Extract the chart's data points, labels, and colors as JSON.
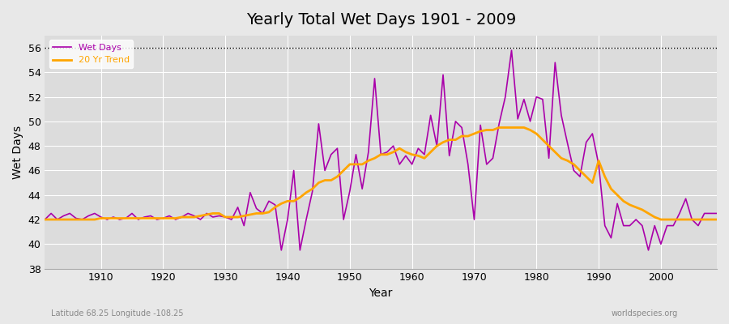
{
  "title": "Yearly Total Wet Days 1901 - 2009",
  "xlabel": "Year",
  "ylabel": "Wet Days",
  "subtitle": "Latitude 68.25 Longitude -108.25",
  "watermark": "worldspecies.org",
  "bg_color": "#e8e8e8",
  "plot_bg_color": "#dcdcdc",
  "wet_days_color": "#aa00aa",
  "trend_color": "#ffa500",
  "ylim": [
    38,
    57
  ],
  "yticks": [
    38,
    40,
    42,
    44,
    46,
    48,
    50,
    52,
    54,
    56
  ],
  "xlim": [
    1901,
    2009
  ],
  "xticks": [
    1910,
    1920,
    1930,
    1940,
    1950,
    1960,
    1970,
    1980,
    1990,
    2000
  ],
  "years": [
    1901,
    1902,
    1903,
    1904,
    1905,
    1906,
    1907,
    1908,
    1909,
    1910,
    1911,
    1912,
    1913,
    1914,
    1915,
    1916,
    1917,
    1918,
    1919,
    1920,
    1921,
    1922,
    1923,
    1924,
    1925,
    1926,
    1927,
    1928,
    1929,
    1930,
    1931,
    1932,
    1933,
    1934,
    1935,
    1936,
    1937,
    1938,
    1939,
    1940,
    1941,
    1942,
    1943,
    1944,
    1945,
    1946,
    1947,
    1948,
    1949,
    1950,
    1951,
    1952,
    1953,
    1954,
    1955,
    1956,
    1957,
    1958,
    1959,
    1960,
    1961,
    1962,
    1963,
    1964,
    1965,
    1966,
    1967,
    1968,
    1969,
    1970,
    1971,
    1972,
    1973,
    1974,
    1975,
    1976,
    1977,
    1978,
    1979,
    1980,
    1981,
    1982,
    1983,
    1984,
    1985,
    1986,
    1987,
    1988,
    1989,
    1990,
    1991,
    1992,
    1993,
    1994,
    1995,
    1996,
    1997,
    1998,
    1999,
    2000,
    2001,
    2002,
    2003,
    2004,
    2005,
    2006,
    2007,
    2008,
    2009
  ],
  "wet_days": [
    42.0,
    42.5,
    42.0,
    42.3,
    42.5,
    42.1,
    42.0,
    42.3,
    42.5,
    42.2,
    42.0,
    42.2,
    42.0,
    42.1,
    42.5,
    42.0,
    42.2,
    42.3,
    42.0,
    42.1,
    42.3,
    42.0,
    42.2,
    42.5,
    42.3,
    42.0,
    42.5,
    42.2,
    42.3,
    42.2,
    42.0,
    43.0,
    41.5,
    44.2,
    42.9,
    42.5,
    43.5,
    43.2,
    39.5,
    42.0,
    46.0,
    39.5,
    42.0,
    44.3,
    49.8,
    46.0,
    47.3,
    47.8,
    42.0,
    44.3,
    47.3,
    44.5,
    47.5,
    53.5,
    47.3,
    47.5,
    48.0,
    46.5,
    47.2,
    46.5,
    47.8,
    47.3,
    50.5,
    48.0,
    53.8,
    47.2,
    50.0,
    49.5,
    46.5,
    42.0,
    49.7,
    46.5,
    47.0,
    49.8,
    52.0,
    55.8,
    50.2,
    51.8,
    50.0,
    52.0,
    51.8,
    47.0,
    54.8,
    50.5,
    48.2,
    46.0,
    45.5,
    48.3,
    49.0,
    46.5,
    41.5,
    40.5,
    43.3,
    41.5,
    41.5,
    42.0,
    41.5,
    39.5,
    41.5,
    40.0,
    41.5,
    41.5,
    42.5,
    43.7,
    42.0,
    41.5,
    42.5,
    42.5,
    42.5
  ],
  "trend": [
    42.0,
    42.0,
    42.0,
    42.0,
    42.0,
    42.0,
    42.0,
    42.0,
    42.0,
    42.1,
    42.1,
    42.1,
    42.1,
    42.1,
    42.1,
    42.1,
    42.1,
    42.1,
    42.1,
    42.1,
    42.1,
    42.1,
    42.2,
    42.2,
    42.2,
    42.3,
    42.4,
    42.5,
    42.5,
    42.2,
    42.2,
    42.2,
    42.3,
    42.4,
    42.5,
    42.5,
    42.6,
    43.0,
    43.3,
    43.5,
    43.5,
    43.8,
    44.2,
    44.5,
    45.0,
    45.2,
    45.2,
    45.5,
    46.0,
    46.5,
    46.5,
    46.5,
    46.8,
    47.0,
    47.3,
    47.3,
    47.5,
    47.8,
    47.5,
    47.3,
    47.2,
    47.0,
    47.5,
    48.0,
    48.3,
    48.5,
    48.5,
    48.8,
    48.8,
    49.0,
    49.2,
    49.3,
    49.3,
    49.5,
    49.5,
    49.5,
    49.5,
    49.5,
    49.3,
    49.0,
    48.5,
    48.0,
    47.5,
    47.0,
    46.8,
    46.5,
    46.0,
    45.5,
    45.0,
    46.8,
    45.5,
    44.5,
    44.0,
    43.5,
    43.2,
    43.0,
    42.8,
    42.5,
    42.2,
    42.0,
    42.0,
    42.0,
    42.0,
    42.0,
    42.0,
    42.0,
    42.0,
    42.0,
    42.0
  ]
}
